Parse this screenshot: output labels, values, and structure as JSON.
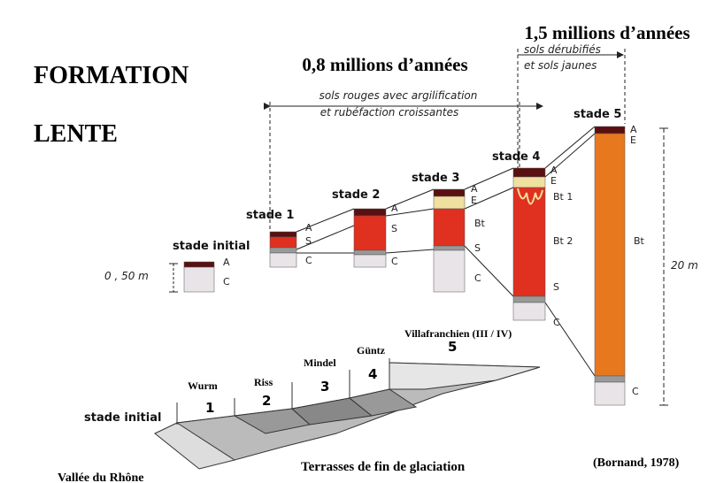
{
  "title": {
    "lines": [
      "FORMATION",
      "LENTE"
    ]
  },
  "periods": [
    {
      "label": "0,8 millions d’années",
      "notes": [
        "sols rouges avec argilification",
        "et rubéfaction croissantes"
      ]
    },
    {
      "label": "1,5 millions d’années",
      "notes": [
        "sols dérubifiés",
        "et sols jaunes"
      ]
    }
  ],
  "columns": [
    {
      "label": "stade initial",
      "horizons": [
        "A",
        "C"
      ],
      "scale": "0 , 50 m"
    },
    {
      "label": "stade 1",
      "horizons": [
        "A",
        "S",
        "C"
      ]
    },
    {
      "label": "stade 2",
      "horizons": [
        "A",
        "S",
        "C"
      ]
    },
    {
      "label": "stade 3",
      "horizons": [
        "A",
        "E",
        "Bt",
        "S",
        "C"
      ]
    },
    {
      "label": "stade 4",
      "horizons": [
        "A",
        "E",
        "Bt 1",
        "Bt 2",
        "S",
        "C"
      ]
    },
    {
      "label": "stade 5",
      "horizons": [
        "A",
        "E",
        "Bt",
        "C"
      ],
      "scale": "20 m"
    }
  ],
  "terraces": [
    {
      "name": "Wurm",
      "number": "1"
    },
    {
      "name": "Riss",
      "number": "2"
    },
    {
      "name": "Mindel",
      "number": "3"
    },
    {
      "name": "Güntz",
      "number": "4"
    },
    {
      "name": "Villafranchien (III / IV)",
      "number": "5"
    }
  ],
  "terrace_start": "stade initial",
  "captions": {
    "valley": "Vallée du Rhône",
    "terraces": "Terrasses de fin de glaciation",
    "source": "(Bornand, 1978)"
  }
}
